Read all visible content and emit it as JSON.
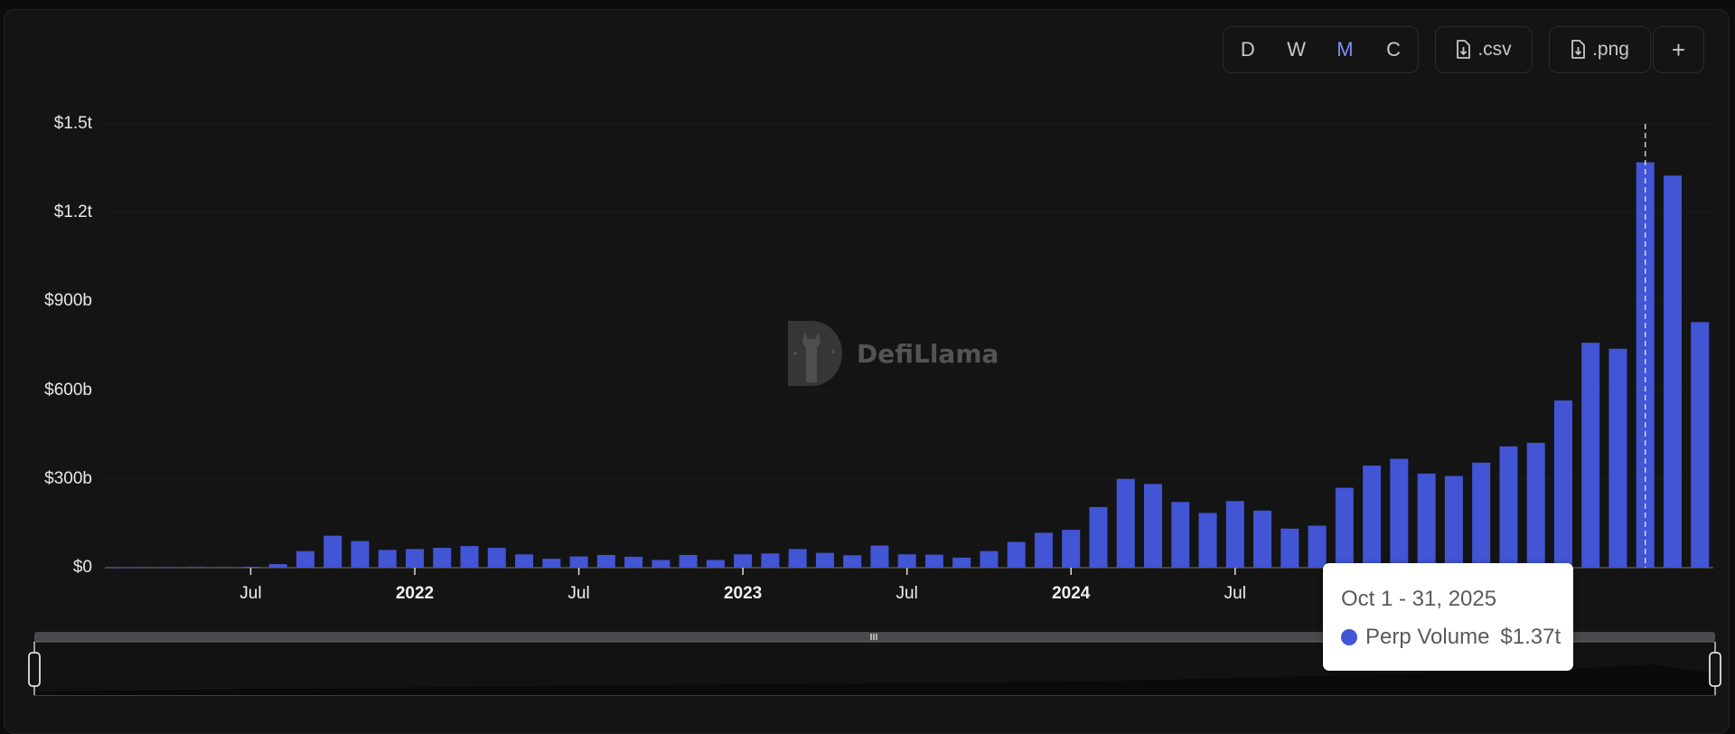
{
  "controls": {
    "granularity": [
      {
        "label": "D",
        "active": false
      },
      {
        "label": "W",
        "active": false
      },
      {
        "label": "M",
        "active": true
      },
      {
        "label": "C",
        "active": false
      }
    ],
    "csv_label": ".csv",
    "png_label": ".png",
    "add_label": "+"
  },
  "watermark": "DefiLlama",
  "tooltip": {
    "date": "Oct 1 - 31, 2025",
    "series": "Perp Volume",
    "value": "$1.37t"
  },
  "colors": {
    "bar": "#4255d4",
    "accent": "#7d8ef0",
    "background": "#141415"
  },
  "chart_data": {
    "type": "bar",
    "xaxis_type": "monthly",
    "y_ticks": [
      "$0",
      "$300b",
      "$600b",
      "$900b",
      "$1.2t",
      "$1.5t"
    ],
    "x_ticks": [
      {
        "label": "Jul",
        "date": "2021-07",
        "bold": false
      },
      {
        "label": "2022",
        "date": "2022-01",
        "bold": true
      },
      {
        "label": "Jul",
        "date": "2022-07",
        "bold": false
      },
      {
        "label": "2023",
        "date": "2023-01",
        "bold": true
      },
      {
        "label": "Jul",
        "date": "2023-07",
        "bold": false
      },
      {
        "label": "2024",
        "date": "2024-01",
        "bold": true
      },
      {
        "label": "Jul",
        "date": "2024-07",
        "bold": false
      }
    ],
    "ylim": [
      0,
      1500
    ],
    "y_unit": "billion USD",
    "grid": true,
    "highlighted": "2025-10",
    "series": [
      {
        "name": "Perp Volume",
        "dates": [
          "2021-02",
          "2021-03",
          "2021-04",
          "2021-05",
          "2021-06",
          "2021-07",
          "2021-08",
          "2021-09",
          "2021-10",
          "2021-11",
          "2021-12",
          "2022-01",
          "2022-02",
          "2022-03",
          "2022-04",
          "2022-05",
          "2022-06",
          "2022-07",
          "2022-08",
          "2022-09",
          "2022-10",
          "2022-11",
          "2022-12",
          "2023-01",
          "2023-02",
          "2023-03",
          "2023-04",
          "2023-05",
          "2023-06",
          "2023-07",
          "2023-08",
          "2023-09",
          "2023-10",
          "2023-11",
          "2023-12",
          "2024-01",
          "2024-02",
          "2024-03",
          "2024-04",
          "2024-05",
          "2024-06",
          "2024-07",
          "2024-08",
          "2024-09",
          "2024-10",
          "2024-11",
          "2024-12",
          "2025-01",
          "2025-02",
          "2025-03",
          "2025-04",
          "2025-05",
          "2025-06",
          "2025-07",
          "2025-08",
          "2025-09",
          "2025-10",
          "2025-11",
          "2025-12"
        ],
        "values": [
          0.5,
          1,
          1,
          2,
          2,
          3,
          12,
          56,
          108,
          90,
          60,
          63,
          67,
          73,
          67,
          45,
          30,
          38,
          43,
          37,
          26,
          43,
          26,
          45,
          48,
          63,
          50,
          42,
          75,
          45,
          44,
          34,
          56,
          87,
          118,
          128,
          205,
          300,
          283,
          222,
          185,
          225,
          193,
          132,
          142,
          270,
          345,
          368,
          318,
          310,
          355,
          410,
          422,
          565,
          760,
          740,
          1370,
          1325,
          830
        ]
      }
    ]
  }
}
